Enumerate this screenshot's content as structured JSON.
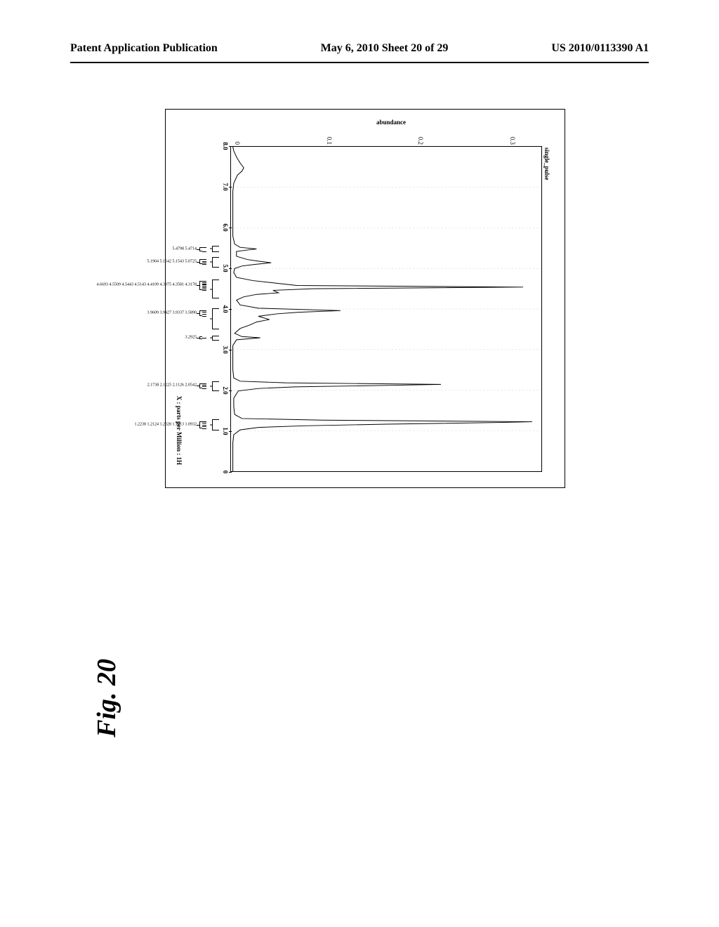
{
  "header": {
    "left": "Patent Application Publication",
    "center": "May 6, 2010  Sheet 20 of 29",
    "right": "US 2010/0113390 A1"
  },
  "figure_label": "Fig. 20",
  "spectrum": {
    "type": "line",
    "title": "single_pulse",
    "x_label": "X : parts per Million : 1H",
    "y_label": "abundance",
    "background_color": "#ffffff",
    "line_color": "#000000",
    "xlim": [
      8.0,
      0.0
    ],
    "ylim": [
      0,
      0.34
    ],
    "x_ticks": [
      8.0,
      7.0,
      6.0,
      5.0,
      4.0,
      3.0,
      2.0,
      1.0,
      0
    ],
    "y_ticks": [
      0,
      0.1,
      0.2,
      0.3
    ],
    "peak_clusters": [
      {
        "center_ppm": 5.47,
        "width_ppm": 0.1,
        "values": [
          "5.4798",
          "5.4714"
        ]
      },
      {
        "center_ppm": 5.16,
        "width_ppm": 0.12,
        "values": [
          "5.1904",
          "5.1542",
          "5.1543",
          "5.0725"
        ]
      },
      {
        "center_ppm": 4.58,
        "width_ppm": 0.22,
        "values": [
          "4.6693",
          "4.5509",
          "4.5443",
          "4.5143",
          "4.4109",
          "4.3975",
          "4.3581",
          "4.3178"
        ]
      },
      {
        "center_ppm": 3.9,
        "width_ppm": 0.14,
        "values": [
          "3.9609",
          "3.9427",
          "3.9337",
          "3.5890"
        ]
      },
      {
        "center_ppm": 3.29,
        "width_ppm": 0.06,
        "values": [
          "3.2925"
        ]
      },
      {
        "center_ppm": 2.12,
        "width_ppm": 0.12,
        "values": [
          "2.1738",
          "2.1225",
          "2.1126",
          "2.0542"
        ]
      },
      {
        "center_ppm": 1.16,
        "width_ppm": 0.18,
        "values": [
          "1.2238",
          "1.2124",
          "1.2028",
          "1.1813",
          "1.0932"
        ]
      }
    ],
    "integration_regions": [
      {
        "from_ppm": 5.55,
        "to_ppm": 5.4
      },
      {
        "from_ppm": 5.28,
        "to_ppm": 5.02
      },
      {
        "from_ppm": 4.72,
        "to_ppm": 4.25
      },
      {
        "from_ppm": 4.02,
        "to_ppm": 3.5
      },
      {
        "from_ppm": 3.35,
        "to_ppm": 3.22
      },
      {
        "from_ppm": 2.22,
        "to_ppm": 1.98
      },
      {
        "from_ppm": 1.3,
        "to_ppm": 1.02
      }
    ],
    "trace": [
      [
        8.0,
        0.002
      ],
      [
        7.9,
        0.003
      ],
      [
        7.75,
        0.006
      ],
      [
        7.6,
        0.01
      ],
      [
        7.48,
        0.014
      ],
      [
        7.4,
        0.012
      ],
      [
        7.3,
        0.007
      ],
      [
        7.1,
        0.003
      ],
      [
        6.9,
        0.002
      ],
      [
        6.5,
        0.002
      ],
      [
        6.1,
        0.002
      ],
      [
        5.8,
        0.002
      ],
      [
        5.6,
        0.004
      ],
      [
        5.52,
        0.01
      ],
      [
        5.48,
        0.028
      ],
      [
        5.46,
        0.02
      ],
      [
        5.42,
        0.006
      ],
      [
        5.3,
        0.006
      ],
      [
        5.22,
        0.018
      ],
      [
        5.18,
        0.03
      ],
      [
        5.14,
        0.044
      ],
      [
        5.1,
        0.026
      ],
      [
        5.06,
        0.012
      ],
      [
        5.0,
        0.004
      ],
      [
        4.9,
        0.003
      ],
      [
        4.78,
        0.006
      ],
      [
        4.7,
        0.024
      ],
      [
        4.64,
        0.048
      ],
      [
        4.58,
        0.072
      ],
      [
        4.54,
        0.32
      ],
      [
        4.5,
        0.09
      ],
      [
        4.46,
        0.046
      ],
      [
        4.4,
        0.052
      ],
      [
        4.36,
        0.028
      ],
      [
        4.3,
        0.014
      ],
      [
        4.22,
        0.006
      ],
      [
        4.1,
        0.01
      ],
      [
        4.02,
        0.03
      ],
      [
        3.96,
        0.12
      ],
      [
        3.92,
        0.074
      ],
      [
        3.88,
        0.05
      ],
      [
        3.82,
        0.03
      ],
      [
        3.74,
        0.042
      ],
      [
        3.68,
        0.028
      ],
      [
        3.6,
        0.02
      ],
      [
        3.52,
        0.01
      ],
      [
        3.4,
        0.004
      ],
      [
        3.32,
        0.012
      ],
      [
        3.29,
        0.032
      ],
      [
        3.24,
        0.006
      ],
      [
        3.1,
        0.002
      ],
      [
        2.8,
        0.002
      ],
      [
        2.5,
        0.002
      ],
      [
        2.3,
        0.003
      ],
      [
        2.22,
        0.01
      ],
      [
        2.18,
        0.06
      ],
      [
        2.14,
        0.23
      ],
      [
        2.12,
        0.18
      ],
      [
        2.08,
        0.07
      ],
      [
        2.04,
        0.03
      ],
      [
        1.98,
        0.008
      ],
      [
        1.8,
        0.003
      ],
      [
        1.6,
        0.003
      ],
      [
        1.4,
        0.004
      ],
      [
        1.3,
        0.012
      ],
      [
        1.26,
        0.1
      ],
      [
        1.22,
        0.33
      ],
      [
        1.2,
        0.29
      ],
      [
        1.16,
        0.17
      ],
      [
        1.12,
        0.08
      ],
      [
        1.08,
        0.03
      ],
      [
        1.02,
        0.01
      ],
      [
        0.9,
        0.003
      ],
      [
        0.7,
        0.002
      ],
      [
        0.5,
        0.002
      ],
      [
        0.3,
        0.002
      ],
      [
        0.1,
        0.002
      ],
      [
        0.0,
        0.002
      ]
    ]
  }
}
